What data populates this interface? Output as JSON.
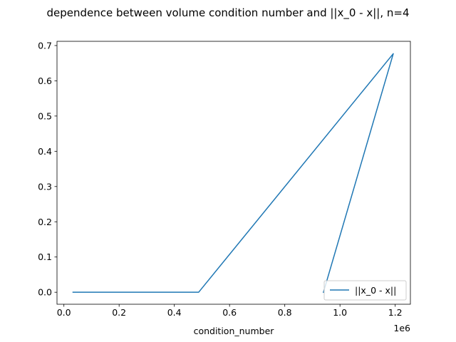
{
  "chart_data": {
    "type": "line",
    "title": "dependence between volume condition number and ||x_0 - x||, n=4",
    "xlabel": "condition_number",
    "ylabel": "",
    "x_offset_label": "1e6",
    "xlim": [
      -0.025,
      1.255
    ],
    "ylim": [
      -0.034,
      0.712
    ],
    "x_ticks": [
      0.0,
      0.2,
      0.4,
      0.6,
      0.8,
      1.0,
      1.2
    ],
    "x_tick_labels": [
      "0.0",
      "0.2",
      "0.4",
      "0.6",
      "0.8",
      "1.0",
      "1.2"
    ],
    "y_ticks": [
      0.0,
      0.1,
      0.2,
      0.3,
      0.4,
      0.5,
      0.6,
      0.7
    ],
    "y_tick_labels": [
      "0.0",
      "0.1",
      "0.2",
      "0.3",
      "0.4",
      "0.5",
      "0.6",
      "0.7"
    ],
    "grid": false,
    "legend_position": "lower-right",
    "series": [
      {
        "name": "||x_0 - x||",
        "color": "#1f77b4",
        "x": [
          0.033,
          0.488,
          1.193,
          0.94
        ],
        "y": [
          0.0,
          0.0,
          0.677,
          0.0
        ]
      }
    ]
  }
}
